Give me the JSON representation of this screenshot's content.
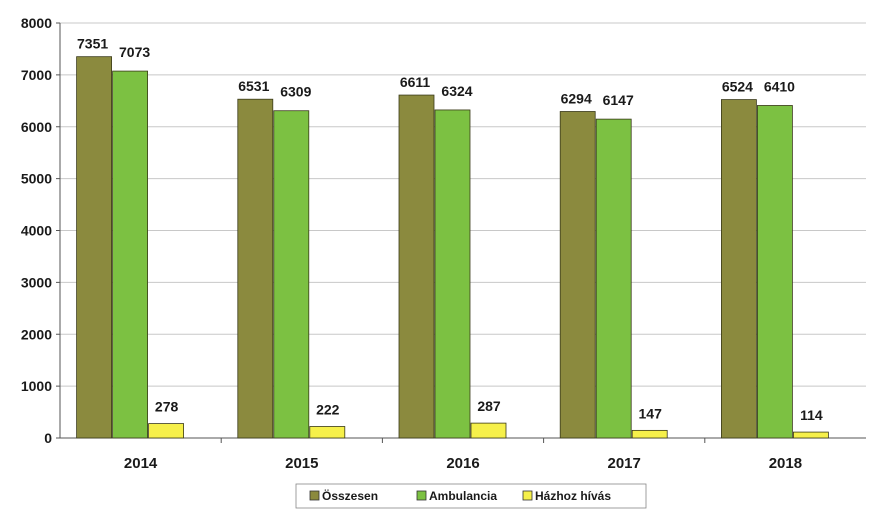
{
  "chart_data": {
    "type": "bar",
    "categories": [
      "2014",
      "2015",
      "2016",
      "2017",
      "2018"
    ],
    "series": [
      {
        "name": "Összesen",
        "values": [
          7351,
          6531,
          6611,
          6294,
          6524
        ],
        "color": "#8b8a3e"
      },
      {
        "name": "Ambulancia",
        "values": [
          7073,
          6309,
          6324,
          6147,
          6410
        ],
        "color": "#7cc142"
      },
      {
        "name": "Házhoz hívás",
        "values": [
          278,
          222,
          287,
          147,
          114
        ],
        "color": "#f6f04a"
      }
    ],
    "y_ticks": [
      "0",
      "1000",
      "2000",
      "3000",
      "4000",
      "5000",
      "6000",
      "7000",
      "8000"
    ],
    "ylim": [
      0,
      8000
    ],
    "grid": true,
    "legend_position": "bottom-center"
  }
}
